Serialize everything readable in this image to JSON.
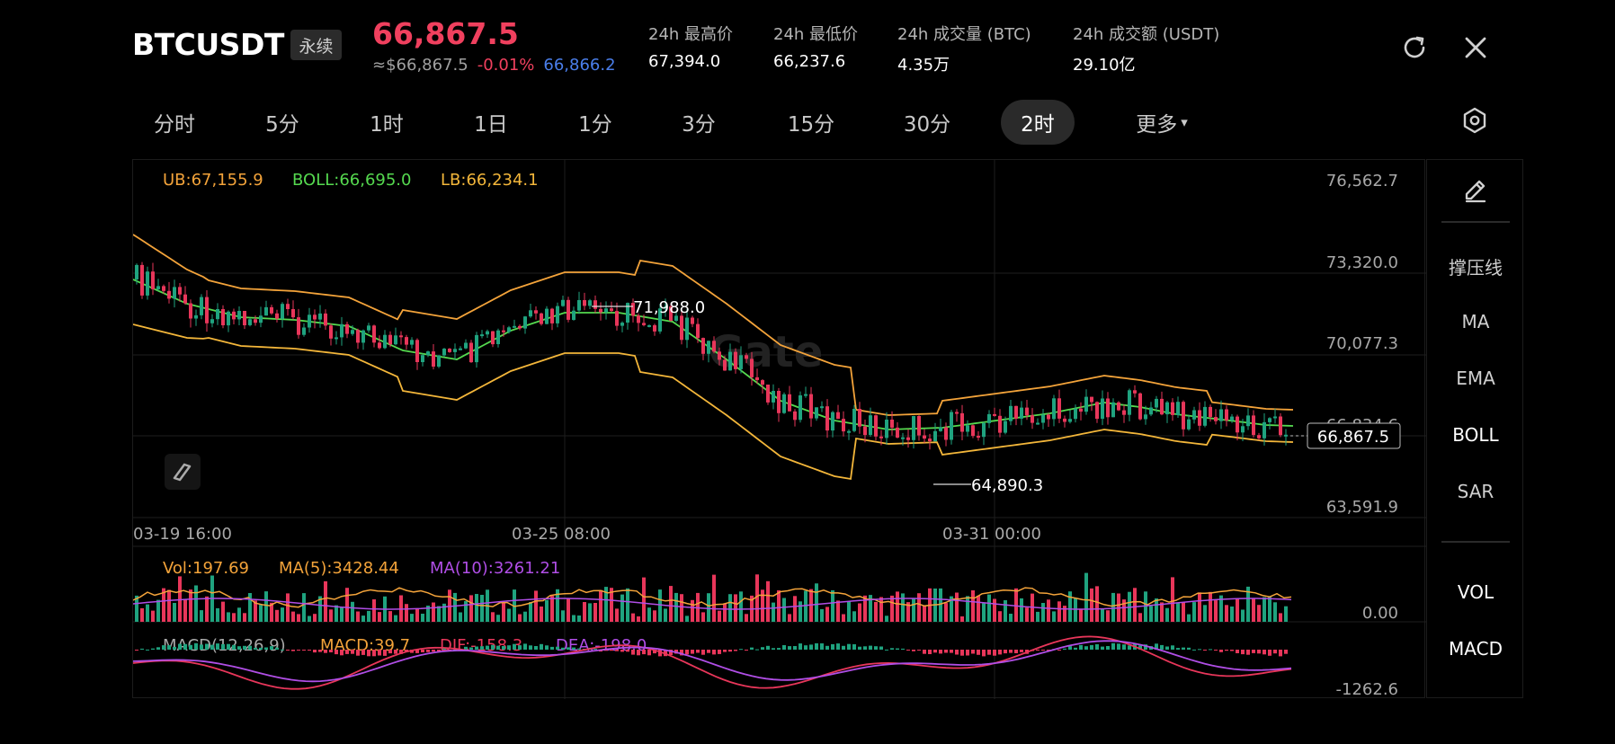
{
  "header": {
    "symbol": "BTCUSDT",
    "badge": "永续",
    "price": "66,867.5",
    "usd_price": "≈$66,867.5",
    "change_pct": "-0.01%",
    "mark_price": "66,866.2",
    "stats": [
      {
        "label": "24h 最高价",
        "value": "67,394.0"
      },
      {
        "label": "24h 最低价",
        "value": "66,237.6"
      },
      {
        "label": "24h 成交量 (BTC)",
        "value": "4.35万"
      },
      {
        "label": "24h 成交额 (USDT)",
        "value": "29.10亿"
      }
    ],
    "icons": {
      "refresh": "refresh-icon",
      "close": "close-icon"
    }
  },
  "tabs": [
    "分时",
    "5分",
    "1时",
    "1日",
    "1分",
    "3分",
    "15分",
    "30分",
    "2时",
    "更多"
  ],
  "active_tab": "2时",
  "more_arrow": "▾",
  "side_panel": [
    "撑压线",
    "MA",
    "EMA",
    "BOLL",
    "SAR",
    "VOL",
    "MACD"
  ],
  "side_active": [
    "BOLL",
    "VOL",
    "MACD"
  ],
  "indicators": {
    "boll": {
      "ub": "UB:67,155.9",
      "boll": "BOLL:66,695.0",
      "lb": "LB:66,234.1"
    },
    "vol": {
      "vol": "Vol:197.69",
      "ma5": "MA(5):3428.44",
      "ma10": "MA(10):3261.21"
    },
    "macd": {
      "label": "MACD(12,26,9)",
      "macd": "MACD:39.7",
      "dif": "DIF:-158.3",
      "dea": "DEA:-198.0"
    }
  },
  "chart_data": {
    "type": "candlestick",
    "price_axis": [
      "76,562.7",
      "73,320.0",
      "70,077.3",
      "66,834.6",
      "63,591.9"
    ],
    "ylim": [
      63591.9,
      76562.7
    ],
    "time_axis": [
      "03-19 16:00",
      "03-25 08:00",
      "03-31 00:00"
    ],
    "high_label": "71,988.0",
    "low_label": "64,890.3",
    "last_price_label": "66,867.5",
    "vol_axis": "0.00",
    "macd_axis": "-1262.6",
    "watermark": "Gate",
    "colors": {
      "up": "#1fa37f",
      "down": "#e8365a",
      "ub": "#f3a33a",
      "boll": "#55d94f",
      "lb": "#f3b63a",
      "ma5": "#f3a33a",
      "ma10": "#b04ee6",
      "dif": "#e8365a",
      "dea": "#b04ee6"
    }
  }
}
